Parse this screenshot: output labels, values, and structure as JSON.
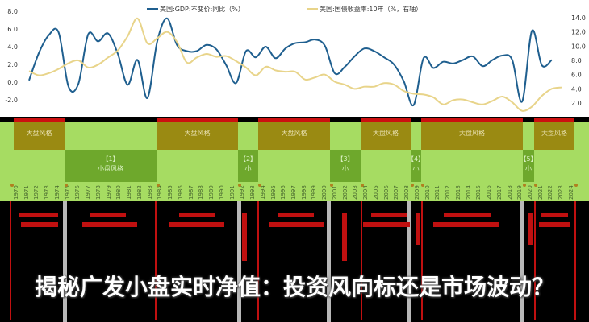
{
  "chart_data": {
    "type": "line",
    "x": [
      1970,
      1971,
      1972,
      1973,
      1974,
      1975,
      1976,
      1977,
      1978,
      1979,
      1980,
      1981,
      1982,
      1983,
      1984,
      1985,
      1986,
      1987,
      1988,
      1989,
      1990,
      1991,
      1992,
      1993,
      1994,
      1995,
      1996,
      1997,
      1998,
      1999,
      2000,
      2001,
      2002,
      2003,
      2004,
      2005,
      2006,
      2007,
      2008,
      2009,
      2010,
      2011,
      2012,
      2013,
      2014,
      2015,
      2016,
      2017,
      2018,
      2019,
      2020,
      2021,
      2022,
      2023,
      2024
    ],
    "series": [
      {
        "name": "美国:GDP:不变价:同比（%）",
        "axis": "left",
        "color": "#1f5f8f",
        "values": [
          0.2,
          3.3,
          5.3,
          5.6,
          -0.5,
          -0.2,
          5.4,
          4.6,
          5.5,
          3.2,
          -0.3,
          2.5,
          -1.8,
          4.6,
          7.2,
          4.2,
          3.5,
          3.5,
          4.2,
          3.7,
          1.9,
          -0.1,
          3.5,
          2.8,
          4.0,
          2.7,
          3.8,
          4.4,
          4.5,
          4.8,
          4.1,
          1.0,
          1.7,
          2.9,
          3.8,
          3.5,
          2.8,
          2.0,
          0.1,
          -2.6,
          2.7,
          1.6,
          2.3,
          2.1,
          2.5,
          2.9,
          1.8,
          2.5,
          3.0,
          2.5,
          -2.2,
          5.8,
          1.9,
          2.5,
          null
        ]
      },
      {
        "name": "美国:国债收益率:10年（%，右轴）",
        "axis": "right",
        "color": "#e8d48a",
        "values": [
          6.5,
          5.9,
          6.2,
          6.8,
          7.6,
          8.0,
          7.0,
          7.4,
          8.4,
          9.4,
          11.4,
          13.9,
          10.4,
          11.1,
          12.0,
          10.6,
          7.7,
          8.4,
          8.9,
          8.5,
          8.6,
          7.9,
          7.0,
          5.9,
          7.1,
          6.6,
          6.4,
          6.4,
          5.3,
          5.6,
          6.0,
          5.0,
          4.6,
          4.0,
          4.3,
          4.3,
          4.8,
          4.6,
          3.7,
          3.3,
          3.2,
          2.8,
          1.8,
          2.4,
          2.5,
          2.1,
          1.8,
          2.3,
          2.9,
          2.1,
          0.9,
          1.5,
          3.0,
          4.0,
          4.2
        ]
      }
    ],
    "y_left": {
      "range": [
        -2.0,
        8.0
      ],
      "ticks": [
        "8.0",
        "6.0",
        "4.0",
        "2.0",
        "0.0",
        "-2.0"
      ]
    },
    "y_right": {
      "range": [
        2.0,
        14.0
      ],
      "ticks": [
        "14.0",
        "12.0",
        "10.0",
        "8.0",
        "6.0",
        "4.0",
        "2.0"
      ]
    },
    "legend": "top",
    "grid": false
  },
  "regimes": {
    "big": [
      {
        "label": "大盘风格"
      },
      {
        "label": "大盘风格"
      },
      {
        "label": "大盘风格"
      },
      {
        "label": "大盘风格"
      },
      {
        "label": "大盘风格"
      },
      {
        "label": "大盘风格"
      }
    ],
    "small": [
      {
        "tag": "【1】",
        "label": "小盘风格"
      },
      {
        "tag": "【2】",
        "label": "小"
      },
      {
        "tag": "【3】",
        "label": "小"
      },
      {
        "tag": "【4】",
        "label": "小"
      },
      {
        "tag": "【5】",
        "label": "小"
      }
    ]
  },
  "title": "揭秘广发小盘实时净值：投资风向标还是市场波动？",
  "colors": {
    "band": "#a6dc62",
    "big_box": "#9a8a12",
    "small_box": "#6ea82c",
    "accent_red": "#cc1010"
  }
}
